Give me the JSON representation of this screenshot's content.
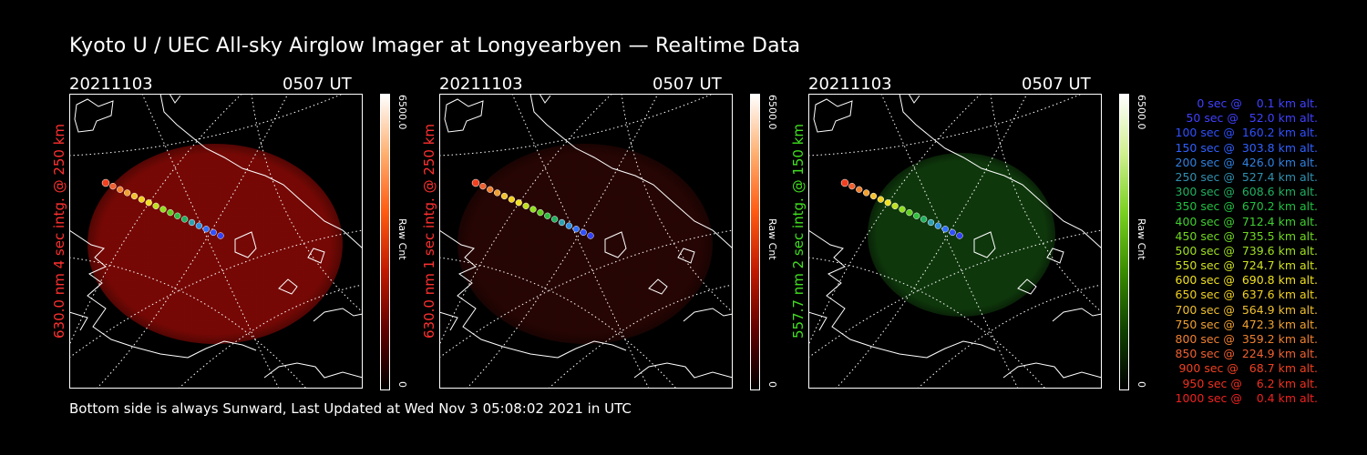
{
  "title": "Kyoto U / UEC All-sky Airglow Imager at Longyearbyen — Realtime Data",
  "footer": "Bottom side is always Sunward, Last Updated at Wed Nov  3 05:08:02 2021 in UTC",
  "panels": [
    {
      "date": "20211103",
      "time": "0507 UT",
      "side_label": "630.0 nm 4 sec intg. @ 250 km",
      "side_color": "#ff3030",
      "cbar_max": "6500.0",
      "cbar_min": "0",
      "cbar_unit": "Raw Cnt",
      "glow_color": "#8a0a06",
      "glow_opacity": 0.85,
      "cbar_gradient": [
        "#ffffff",
        "#ffb070",
        "#ff5a10",
        "#c01800",
        "#600000",
        "#000000"
      ]
    },
    {
      "date": "20211103",
      "time": "0507 UT",
      "side_label": "630.0 nm 1 sec intg. @ 250 km",
      "side_color": "#ff3030",
      "cbar_max": "6500.0",
      "cbar_min": "0",
      "cbar_unit": "Raw Cnt",
      "glow_color": "#2a0604",
      "glow_opacity": 0.9,
      "cbar_gradient": [
        "#ffffff",
        "#ffb070",
        "#ff5a10",
        "#c01800",
        "#600000",
        "#000000"
      ]
    },
    {
      "date": "20211103",
      "time": "0507 UT",
      "side_label": "557.7 nm 2 sec intg. @ 150 km",
      "side_color": "#40e020",
      "cbar_max": "6500.0",
      "cbar_min": "0",
      "cbar_unit": "Raw Cnt",
      "glow_color": "#0f3a0c",
      "glow_opacity": 0.95,
      "cbar_gradient": [
        "#ffffff",
        "#d0f090",
        "#7ad020",
        "#3a8c00",
        "#104000",
        "#000000"
      ]
    }
  ],
  "legend": [
    {
      "text": "0 sec @    0.1 km alt.",
      "color": "#4040ff"
    },
    {
      "text": "50 sec @   52.0 km alt.",
      "color": "#4040ff"
    },
    {
      "text": "100 sec @  160.2 km alt.",
      "color": "#3050ff"
    },
    {
      "text": "150 sec @  303.8 km alt.",
      "color": "#3060ff"
    },
    {
      "text": "200 sec @  426.0 km alt.",
      "color": "#3080e0"
    },
    {
      "text": "250 sec @  527.4 km alt.",
      "color": "#3090b0"
    },
    {
      "text": "300 sec @  608.6 km alt.",
      "color": "#20b060"
    },
    {
      "text": "350 sec @  670.2 km alt.",
      "color": "#20c040"
    },
    {
      "text": "400 sec @  712.4 km alt.",
      "color": "#40d030"
    },
    {
      "text": "450 sec @  735.5 km alt.",
      "color": "#70d820"
    },
    {
      "text": "500 sec @  739.6 km alt.",
      "color": "#a0e020"
    },
    {
      "text": "550 sec @  724.7 km alt.",
      "color": "#d0e020"
    },
    {
      "text": "600 sec @  690.8 km alt.",
      "color": "#f0e020"
    },
    {
      "text": "650 sec @  637.6 km alt.",
      "color": "#f0d020"
    },
    {
      "text": "700 sec @  564.9 km alt.",
      "color": "#f0c030"
    },
    {
      "text": "750 sec @  472.3 km alt.",
      "color": "#f0a030"
    },
    {
      "text": "800 sec @  359.2 km alt.",
      "color": "#f08030"
    },
    {
      "text": "850 sec @  224.9 km alt.",
      "color": "#f06030"
    },
    {
      "text": "900 sec @   68.7 km alt.",
      "color": "#f04020"
    },
    {
      "text": "950 sec @    6.2 km alt.",
      "color": "#f03020"
    },
    {
      "text": "1000 sec @    0.4 km alt.",
      "color": "#f02020"
    }
  ]
}
